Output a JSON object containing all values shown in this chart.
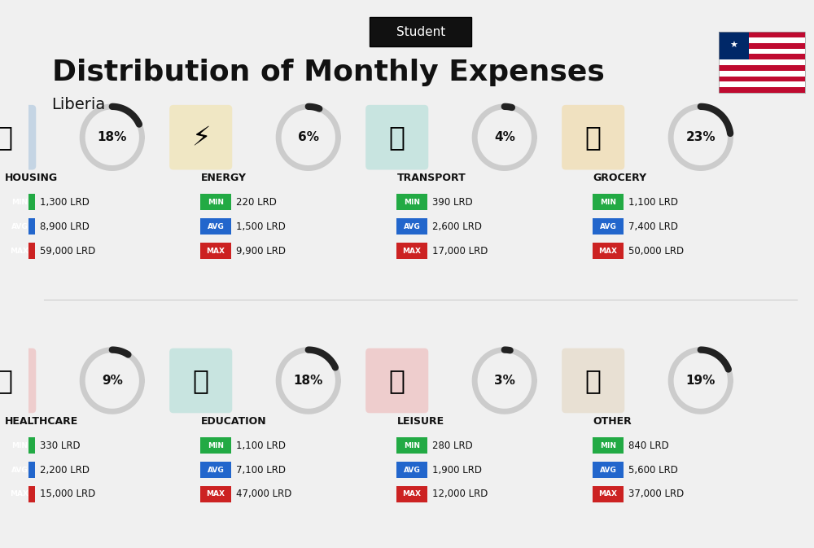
{
  "title": "Distribution of Monthly Expenses",
  "subtitle": "Student",
  "country": "Liberia",
  "bg_color": "#f0f0f0",
  "categories": [
    {
      "name": "HOUSING",
      "pct": 18,
      "min": "1,300 LRD",
      "avg": "8,900 LRD",
      "max": "59,000 LRD",
      "row": 0,
      "col": 0,
      "icon_color": "#1a6bb5"
    },
    {
      "name": "ENERGY",
      "pct": 6,
      "min": "220 LRD",
      "avg": "1,500 LRD",
      "max": "9,900 LRD",
      "row": 0,
      "col": 1,
      "icon_color": "#f5c518"
    },
    {
      "name": "TRANSPORT",
      "pct": 4,
      "min": "390 LRD",
      "avg": "2,600 LRD",
      "max": "17,000 LRD",
      "row": 0,
      "col": 2,
      "icon_color": "#2bb5a0"
    },
    {
      "name": "GROCERY",
      "pct": 23,
      "min": "1,100 LRD",
      "avg": "7,400 LRD",
      "max": "50,000 LRD",
      "row": 0,
      "col": 3,
      "icon_color": "#f0a500"
    },
    {
      "name": "HEALTHCARE",
      "pct": 9,
      "min": "330 LRD",
      "avg": "2,200 LRD",
      "max": "15,000 LRD",
      "row": 1,
      "col": 0,
      "icon_color": "#e84343"
    },
    {
      "name": "EDUCATION",
      "pct": 18,
      "min": "1,100 LRD",
      "avg": "7,100 LRD",
      "max": "47,000 LRD",
      "row": 1,
      "col": 1,
      "icon_color": "#2bb5a0"
    },
    {
      "name": "LEISURE",
      "pct": 3,
      "min": "280 LRD",
      "avg": "1,900 LRD",
      "max": "12,000 LRD",
      "row": 1,
      "col": 2,
      "icon_color": "#e84343"
    },
    {
      "name": "OTHER",
      "pct": 19,
      "min": "840 LRD",
      "avg": "5,600 LRD",
      "max": "37,000 LRD",
      "row": 1,
      "col": 3,
      "icon_color": "#c8a060"
    }
  ],
  "color_min": "#22aa44",
  "color_avg": "#2266cc",
  "color_max": "#cc2222",
  "label_color": "#ffffff",
  "text_color": "#111111"
}
